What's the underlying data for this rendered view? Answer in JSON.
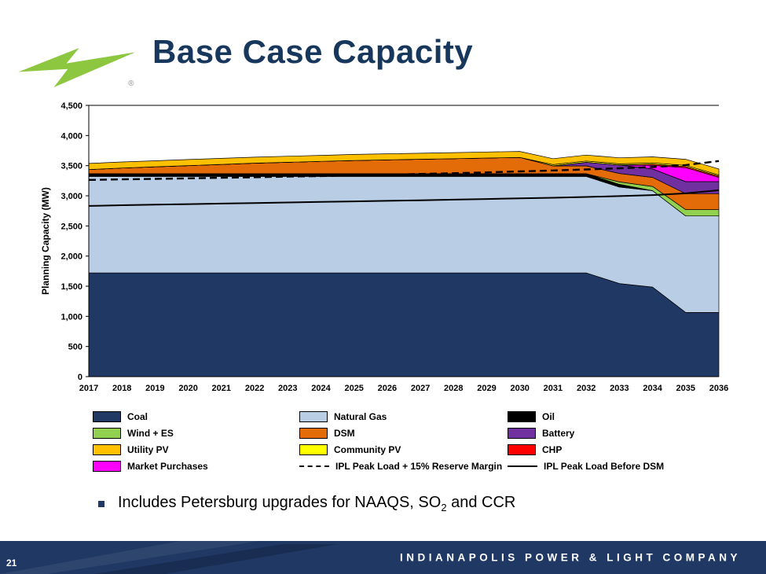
{
  "slide": {
    "title": "Base Case Capacity",
    "page_number": "21",
    "footer_text": "INDIANAPOLIS POWER & LIGHT COMPANY",
    "bullet_before_sub": "Includes Petersburg upgrades for NAAQS, SO",
    "bullet_sub": "2",
    "bullet_after_sub": " and CCR",
    "logo_registered_mark": "®"
  },
  "colors": {
    "brand_green": "#8DC63F",
    "navy": "#1F3864",
    "title_navy": "#17375D"
  },
  "chart_data": {
    "type": "area",
    "stacked": true,
    "title": "",
    "xlabel": "",
    "ylabel": "Planning Capacity (MW)",
    "ylim": [
      0,
      4500
    ],
    "ytick_step": 500,
    "ytick_labels": [
      "0",
      "500",
      "1,000",
      "1,500",
      "2,000",
      "2,500",
      "3,000",
      "3,500",
      "4,000",
      "4,500"
    ],
    "grid": false,
    "legend_position": "bottom",
    "x": [
      2017,
      2018,
      2019,
      2020,
      2021,
      2022,
      2023,
      2024,
      2025,
      2026,
      2027,
      2028,
      2029,
      2030,
      2031,
      2032,
      2033,
      2034,
      2035,
      2036
    ],
    "series": [
      {
        "name": "Coal",
        "color": "#1F3864",
        "values": [
          1721,
          1721,
          1721,
          1721,
          1721,
          1721,
          1721,
          1721,
          1721,
          1721,
          1721,
          1721,
          1721,
          1721,
          1721,
          1721,
          1545,
          1485,
          1065,
          1065
        ]
      },
      {
        "name": "Natural Gas",
        "color": "#B9CDE5",
        "values": [
          1600,
          1600,
          1600,
          1600,
          1600,
          1600,
          1600,
          1600,
          1600,
          1600,
          1600,
          1600,
          1600,
          1600,
          1600,
          1600,
          1600,
          1600,
          1600,
          1600
        ]
      },
      {
        "name": "Oil",
        "color": "#000000",
        "values": [
          45,
          45,
          45,
          45,
          45,
          45,
          45,
          45,
          45,
          45,
          45,
          45,
          45,
          45,
          45,
          45,
          45,
          0,
          0,
          0
        ]
      },
      {
        "name": "Wind + ES",
        "color": "#92D050",
        "values": [
          0,
          0,
          0,
          0,
          0,
          0,
          0,
          0,
          0,
          0,
          0,
          0,
          0,
          0,
          0,
          0,
          40,
          70,
          105,
          105
        ]
      },
      {
        "name": "DSM",
        "color": "#E36C09",
        "values": [
          70,
          95,
          115,
          135,
          155,
          175,
          190,
          205,
          220,
          230,
          240,
          250,
          260,
          270,
          130,
          130,
          140,
          150,
          265,
          265
        ]
      },
      {
        "name": "Battery",
        "color": "#7030A0",
        "values": [
          0,
          0,
          0,
          0,
          0,
          0,
          0,
          0,
          0,
          0,
          0,
          0,
          0,
          0,
          0,
          60,
          140,
          140,
          200,
          200
        ]
      },
      {
        "name": "Market Purchases",
        "color": "#FF00FF",
        "values": [
          0,
          0,
          0,
          0,
          0,
          0,
          0,
          0,
          0,
          0,
          0,
          0,
          0,
          0,
          0,
          0,
          0,
          60,
          230,
          70
        ]
      },
      {
        "name": "CHP",
        "color": "#FF0000",
        "values": [
          0,
          0,
          0,
          0,
          0,
          0,
          0,
          0,
          0,
          0,
          0,
          0,
          0,
          0,
          0,
          0,
          0,
          20,
          20,
          20
        ]
      },
      {
        "name": "Community PV",
        "color": "#FFFF00",
        "values": [
          0,
          0,
          0,
          0,
          0,
          0,
          0,
          0,
          0,
          0,
          0,
          0,
          0,
          0,
          20,
          20,
          20,
          20,
          20,
          20
        ]
      },
      {
        "name": "Utility PV",
        "color": "#FFC000",
        "values": [
          100,
          100,
          100,
          100,
          100,
          100,
          100,
          100,
          100,
          100,
          100,
          100,
          100,
          100,
          100,
          100,
          100,
          100,
          100,
          100
        ]
      }
    ],
    "lines": [
      {
        "name": "IPL Peak Load + 15% Reserve Margin",
        "style": "dashed",
        "color": "#000000",
        "values": [
          3263,
          3272,
          3281,
          3290,
          3299,
          3308,
          3318,
          3328,
          3339,
          3350,
          3362,
          3375,
          3389,
          3404,
          3420,
          3437,
          3456,
          3478,
          3510,
          3576
        ]
      },
      {
        "name": "IPL Peak Load Before DSM",
        "style": "solid",
        "color": "#000000",
        "values": [
          2832,
          2843,
          2853,
          2862,
          2871,
          2880,
          2889,
          2898,
          2907,
          2916,
          2926,
          2936,
          2946,
          2957,
          2968,
          2980,
          2995,
          3012,
          3040,
          3093
        ]
      }
    ]
  },
  "legend": {
    "items": [
      {
        "label": "Coal",
        "swatch": "fill",
        "color": "#1F3864"
      },
      {
        "label": "Natural Gas",
        "swatch": "fill",
        "color": "#B9CDE5"
      },
      {
        "label": "Oil",
        "swatch": "fill",
        "color": "#000000"
      },
      {
        "label": "Wind + ES",
        "swatch": "fill",
        "color": "#92D050"
      },
      {
        "label": "DSM",
        "swatch": "fill",
        "color": "#E36C09"
      },
      {
        "label": "Battery",
        "swatch": "fill",
        "color": "#7030A0"
      },
      {
        "label": "Utility PV",
        "swatch": "fill",
        "color": "#FFC000"
      },
      {
        "label": "Community PV",
        "swatch": "fill",
        "color": "#FFFF00"
      },
      {
        "label": "CHP",
        "swatch": "fill",
        "color": "#FF0000"
      },
      {
        "label": "Market Purchases",
        "swatch": "fill",
        "color": "#FF00FF"
      },
      {
        "label": "IPL Peak Load + 15% Reserve Margin",
        "swatch": "dashed",
        "color": "#000000"
      },
      {
        "label": "IPL Peak Load Before DSM",
        "swatch": "solid",
        "color": "#000000"
      }
    ]
  }
}
